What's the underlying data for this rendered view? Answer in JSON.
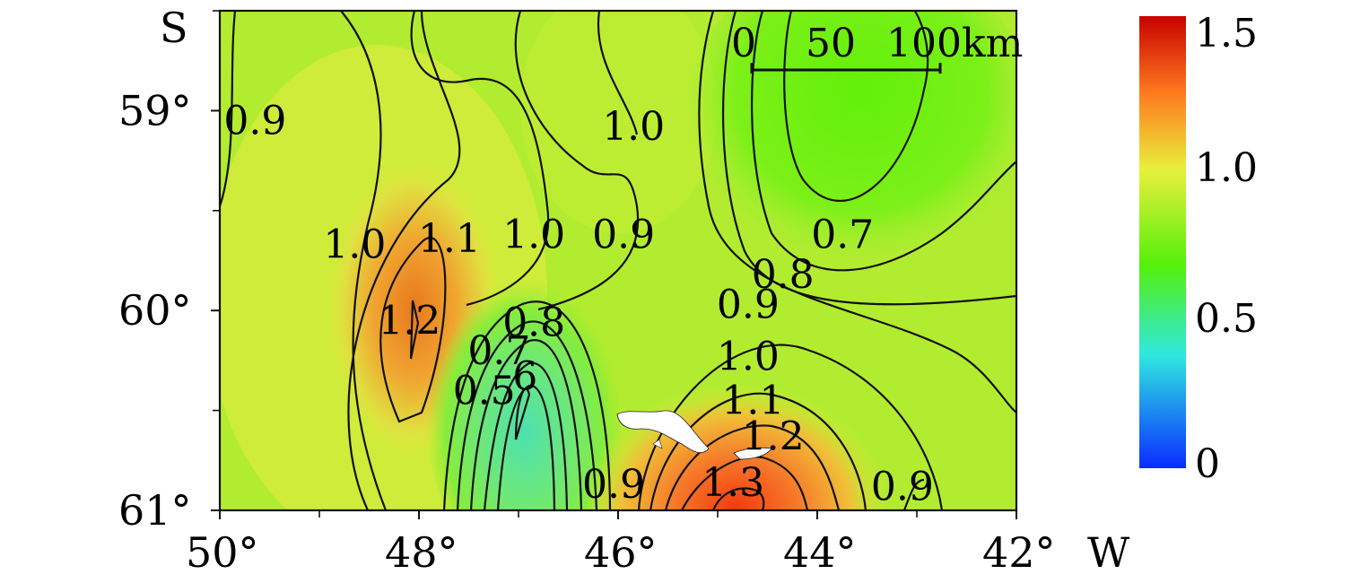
{
  "map": {
    "hemisphere_label": "S",
    "longitude_suffix": "W",
    "x_ticks": [
      {
        "value": 50,
        "label": "50°"
      },
      {
        "value": 48,
        "label": "48°"
      },
      {
        "value": 46,
        "label": "46°"
      },
      {
        "value": 44,
        "label": "44°"
      },
      {
        "value": 42,
        "label": "42°"
      }
    ],
    "y_ticks": [
      {
        "value": 59,
        "label": "59°"
      },
      {
        "value": 60,
        "label": "60°"
      },
      {
        "value": 61,
        "label": "61°"
      }
    ],
    "lon_range": [
      50,
      42
    ],
    "lat_range": [
      58.5,
      61
    ],
    "scale_bar": {
      "labels": [
        "0",
        "50",
        "100km"
      ]
    },
    "colorbar": {
      "ticks": [
        {
          "value": 1.5,
          "label": "1.5"
        },
        {
          "value": 1.0,
          "label": "1.0"
        },
        {
          "value": 0.5,
          "label": "0.5"
        },
        {
          "value": 0,
          "label": "0"
        }
      ],
      "colors": [
        "#0a2bff",
        "#2ee8e0",
        "#55f00a",
        "#e8f03c",
        "#ff7a1e",
        "#c80000"
      ]
    },
    "contour_labels": [
      {
        "text": "0.9",
        "lon": 49.6,
        "lat": 59.05
      },
      {
        "text": "1.0",
        "lon": 45.8,
        "lat": 59.08
      },
      {
        "text": "1.0",
        "lon": 48.6,
        "lat": 59.67
      },
      {
        "text": "1.1",
        "lon": 47.65,
        "lat": 59.64
      },
      {
        "text": "1.0",
        "lon": 46.8,
        "lat": 59.62
      },
      {
        "text": "0.9",
        "lon": 45.9,
        "lat": 59.62
      },
      {
        "text": "0.7",
        "lon": 43.7,
        "lat": 59.62
      },
      {
        "text": "0.8",
        "lon": 44.3,
        "lat": 59.82
      },
      {
        "text": "0.9",
        "lon": 44.65,
        "lat": 59.97
      },
      {
        "text": "1.2",
        "lon": 48.05,
        "lat": 60.05
      },
      {
        "text": "0.8",
        "lon": 46.8,
        "lat": 60.06
      },
      {
        "text": "0.7",
        "lon": 47.15,
        "lat": 60.2
      },
      {
        "text": "1.0",
        "lon": 44.65,
        "lat": 60.23
      },
      {
        "text": "0.5",
        "lon": 47.3,
        "lat": 60.4
      },
      {
        "text": "6",
        "lon": 46.7,
        "lat": 60.33
      },
      {
        "text": "1.1",
        "lon": 44.6,
        "lat": 60.45
      },
      {
        "text": "1.2",
        "lon": 44.4,
        "lat": 60.63
      },
      {
        "text": "0.9",
        "lon": 46.0,
        "lat": 60.87
      },
      {
        "text": "1.3",
        "lon": 44.8,
        "lat": 60.86
      },
      {
        "text": "0.9",
        "lon": 43.1,
        "lat": 60.88
      }
    ]
  }
}
